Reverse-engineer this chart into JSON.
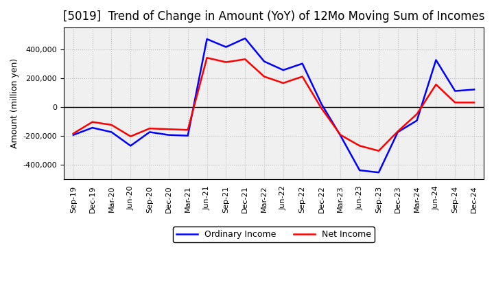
{
  "title": "[5019]  Trend of Change in Amount (YoY) of 12Mo Moving Sum of Incomes",
  "ylabel": "Amount (million yen)",
  "x_labels": [
    "Sep-19",
    "Dec-19",
    "Mar-20",
    "Jun-20",
    "Sep-20",
    "Dec-20",
    "Mar-21",
    "Jun-21",
    "Sep-21",
    "Dec-21",
    "Mar-22",
    "Jun-22",
    "Sep-22",
    "Dec-22",
    "Mar-23",
    "Jun-23",
    "Sep-23",
    "Dec-23",
    "Mar-24",
    "Jun-24",
    "Sep-24",
    "Dec-24"
  ],
  "ordinary_income": [
    -195000,
    -145000,
    -175000,
    -270000,
    -175000,
    -195000,
    -200000,
    470000,
    415000,
    475000,
    315000,
    255000,
    300000,
    20000,
    -200000,
    -440000,
    -455000,
    -175000,
    -95000,
    325000,
    110000,
    120000
  ],
  "net_income": [
    -185000,
    -105000,
    -125000,
    -205000,
    -150000,
    -155000,
    -160000,
    340000,
    310000,
    330000,
    210000,
    165000,
    210000,
    -10000,
    -195000,
    -270000,
    -305000,
    -170000,
    -50000,
    155000,
    30000,
    30000
  ],
  "ordinary_color": "#0000FF",
  "net_color": "#FF0000",
  "ylim": [
    -500000,
    550000
  ],
  "yticks": [
    -400000,
    -200000,
    0,
    200000,
    400000
  ],
  "background_color": "#ffffff",
  "plot_bg_color": "#f0f0f0",
  "grid_color": "#bbbbbb",
  "line_width": 1.8,
  "title_fontsize": 12,
  "axis_label_fontsize": 9,
  "tick_fontsize": 8,
  "legend_ordinary": "Ordinary Income",
  "legend_net": "Net Income"
}
